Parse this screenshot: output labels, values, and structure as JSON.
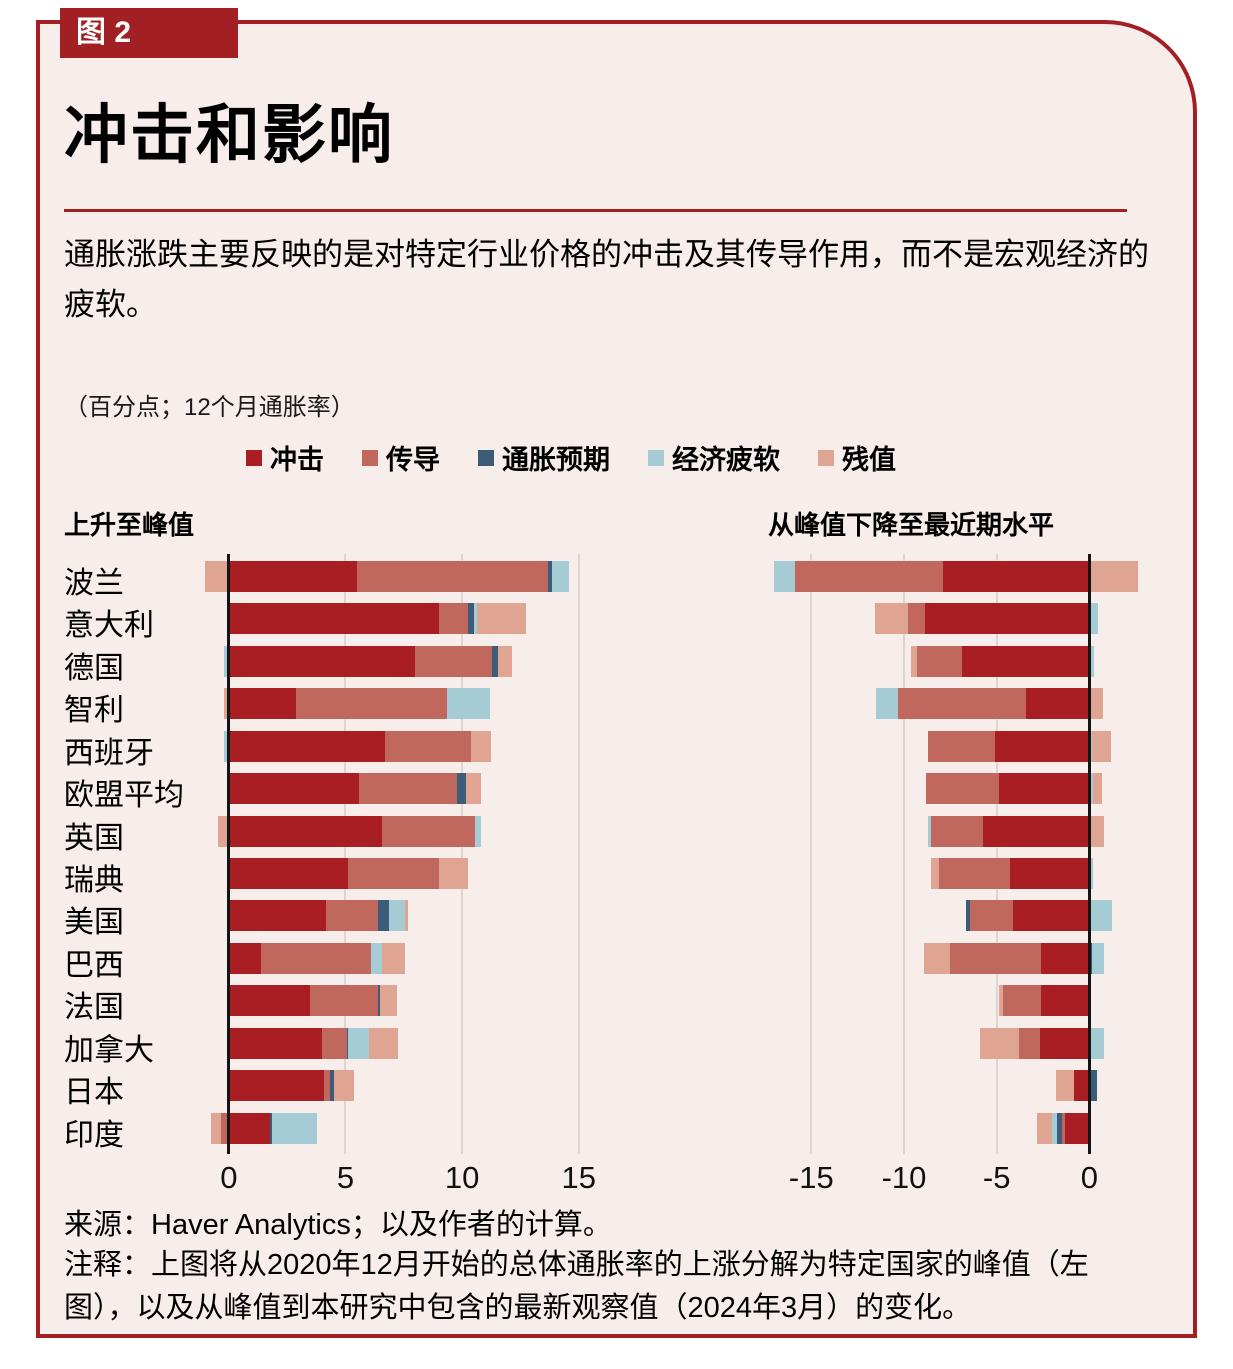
{
  "badge": "图 2",
  "title": "冲击和影响",
  "subtitle": "通胀涨跌主要反映的是对特定行业价格的冲击及其传导作用，而不是宏观经济的疲软。",
  "units_note": "（百分点；12个月通胀率）",
  "legend": [
    {
      "key": "shock",
      "label": "冲击",
      "color": "#a91e22"
    },
    {
      "key": "passthrough",
      "label": "传导",
      "color": "#c0675e"
    },
    {
      "key": "expectations",
      "label": "通胀预期",
      "color": "#3d5c77"
    },
    {
      "key": "slack",
      "label": "经济疲软",
      "color": "#a5cbd5"
    },
    {
      "key": "residual",
      "label": "残值",
      "color": "#dfa492"
    }
  ],
  "colors": {
    "card_background": "#f7edea",
    "accent_red": "#a21f23",
    "gridline": "#ddd5d2",
    "axis_line": "#141414"
  },
  "chart_data": {
    "type": "bar",
    "orientation": "horizontal",
    "stacked": true,
    "units": "percentage points; 12-month inflation",
    "component_order": [
      "shock",
      "passthrough",
      "expectations",
      "slack",
      "residual"
    ],
    "component_labels": {
      "shock": "冲击",
      "passthrough": "传导",
      "expectations": "通胀预期",
      "slack": "经济疲软",
      "residual": "残值"
    },
    "left_panel": {
      "title": "上升至峰值",
      "xticks": [
        0,
        5,
        10,
        15
      ],
      "xlim": [
        -1.45,
        20.2
      ]
    },
    "right_panel": {
      "title": "从峰值下降至最近期水平",
      "xticks": [
        -15,
        -10,
        -5,
        0
      ],
      "xlim": [
        -17.5,
        3.0
      ]
    },
    "rows": [
      {
        "country": "波兰",
        "left": {
          "shock": 5.5,
          "passthrough": 8.2,
          "expectations": 0.15,
          "slack": 0.75,
          "residual": -1.0
        },
        "right": {
          "shock": -7.9,
          "passthrough": -8.0,
          "expectations": 0,
          "slack": -1.1,
          "residual": 2.6
        }
      },
      {
        "country": "意大利",
        "left": {
          "shock": 9.0,
          "passthrough": 1.25,
          "expectations": 0.25,
          "slack": 0.15,
          "residual": 2.1
        },
        "right": {
          "shock": -8.85,
          "passthrough": -0.95,
          "expectations": 0,
          "slack": 0.45,
          "residual": -1.75
        }
      },
      {
        "country": "德国",
        "left": {
          "shock": 8.0,
          "passthrough": 3.3,
          "expectations": 0.25,
          "slack": -0.2,
          "residual": 0.6
        },
        "right": {
          "shock": -6.85,
          "passthrough": -2.45,
          "expectations": 0,
          "slack": 0.25,
          "residual": -0.3
        }
      },
      {
        "country": "智利",
        "left": {
          "shock": 2.9,
          "passthrough": 6.45,
          "expectations": 0,
          "slack": 1.85,
          "residual": -0.2
        },
        "right": {
          "shock": -3.4,
          "passthrough": -6.9,
          "expectations": 0,
          "slack": -1.2,
          "residual": 0.75
        }
      },
      {
        "country": "西班牙",
        "left": {
          "shock": 6.7,
          "passthrough": 3.7,
          "expectations": 0,
          "slack": -0.2,
          "residual": 0.85
        },
        "right": {
          "shock": -5.1,
          "passthrough": -3.6,
          "expectations": 0,
          "slack": 0.15,
          "residual": 1.0
        }
      },
      {
        "country": "欧盟平均",
        "left": {
          "shock": 5.6,
          "passthrough": 4.2,
          "expectations": 0.35,
          "slack": 0,
          "residual": 0.65
        },
        "right": {
          "shock": -4.9,
          "passthrough": -3.9,
          "expectations": 0,
          "slack": 0.2,
          "residual": 0.5
        }
      },
      {
        "country": "英国",
        "left": {
          "shock": 6.55,
          "passthrough": 4.0,
          "expectations": 0,
          "slack": 0.25,
          "residual": -0.45
        },
        "right": {
          "shock": -5.75,
          "passthrough": -2.8,
          "expectations": 0,
          "slack": -0.15,
          "residual": 0.8
        }
      },
      {
        "country": "瑞典",
        "left": {
          "shock": 5.1,
          "passthrough": 3.9,
          "expectations": 0,
          "slack": 0,
          "residual": 1.25
        },
        "right": {
          "shock": -4.3,
          "passthrough": -3.8,
          "expectations": 0,
          "slack": 0.2,
          "residual": -0.45
        }
      },
      {
        "country": "美国",
        "left": {
          "shock": 4.15,
          "passthrough": 2.25,
          "expectations": 0.45,
          "slack": 0.7,
          "residual": 0.15
        },
        "right": {
          "shock": -4.1,
          "passthrough": -2.35,
          "expectations": -0.2,
          "slack": 1.2,
          "residual": 0
        }
      },
      {
        "country": "巴西",
        "left": {
          "shock": 1.4,
          "passthrough": 4.7,
          "expectations": 0,
          "slack": 0.45,
          "residual": 1.0
        },
        "right": {
          "shock": -2.6,
          "passthrough": -4.9,
          "expectations": 0.15,
          "slack": 0.65,
          "residual": -1.4
        }
      },
      {
        "country": "法国",
        "left": {
          "shock": 3.5,
          "passthrough": 2.9,
          "expectations": 0.1,
          "slack": 0,
          "residual": 0.7
        },
        "right": {
          "shock": -2.6,
          "passthrough": -2.05,
          "expectations": 0,
          "slack": 0,
          "residual": -0.25
        }
      },
      {
        "country": "加拿大",
        "left": {
          "shock": 4.0,
          "passthrough": 1.05,
          "expectations": 0.05,
          "slack": 0.9,
          "residual": 1.25
        },
        "right": {
          "shock": -2.65,
          "passthrough": -1.15,
          "expectations": 0,
          "slack": 0.8,
          "residual": -2.1
        }
      },
      {
        "country": "日本",
        "left": {
          "shock": 4.1,
          "passthrough": 0.25,
          "expectations": 0.15,
          "slack": 0,
          "residual": 0.85
        },
        "right": {
          "shock": -0.85,
          "passthrough": 0,
          "expectations": 0.4,
          "slack": 0,
          "residual": -0.95
        }
      },
      {
        "country": "印度",
        "left": {
          "shock": 1.75,
          "passthrough": -0.35,
          "expectations": 0.1,
          "slack": 1.95,
          "residual": -0.4
        },
        "right": {
          "shock": -1.3,
          "passthrough": -0.2,
          "expectations": -0.25,
          "slack": -0.25,
          "residual": -0.8
        }
      }
    ]
  },
  "footer": {
    "source": "来源：Haver Analytics；以及作者的计算。",
    "note": "注释：上图将从2020年12月开始的总体通胀率的上涨分解为特定国家的峰值（左图），以及从峰值到本研究中包含的最新观察值（2024年3月）的变化。"
  }
}
